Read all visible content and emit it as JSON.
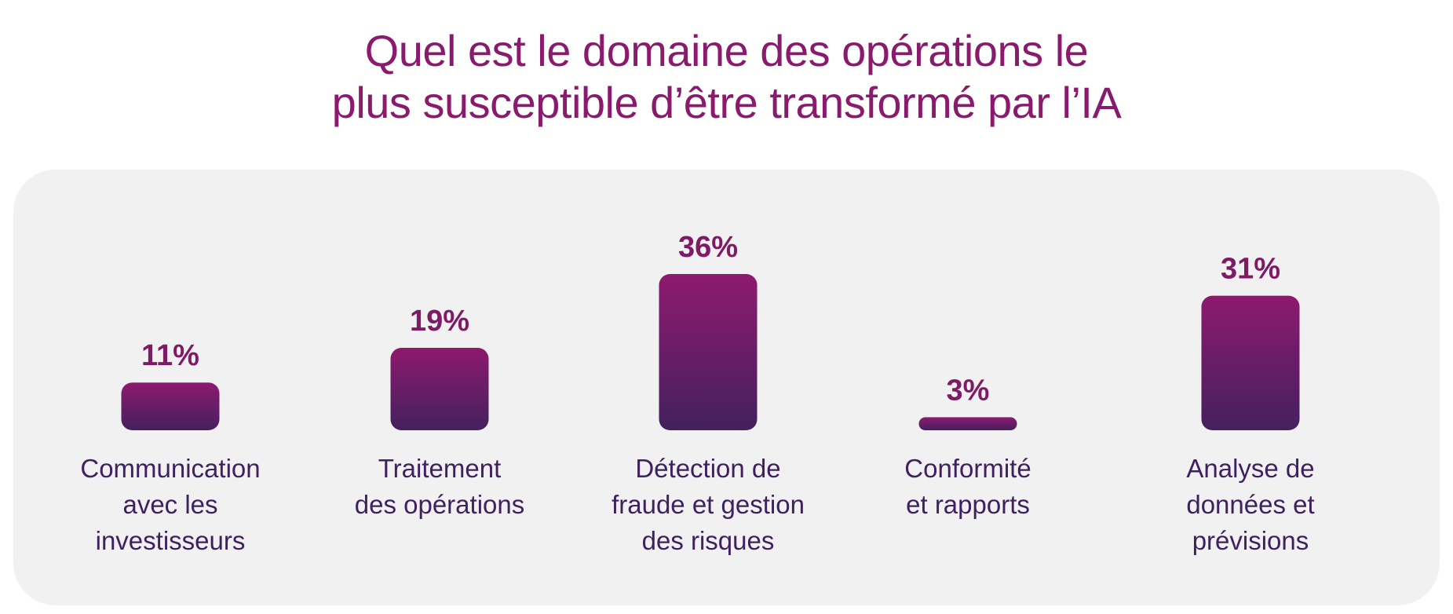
{
  "title": {
    "line1": "Quel est le domaine des opérations le",
    "line2": "plus susceptible d’être transformé par l’IA"
  },
  "colors": {
    "title": "#8a1a6d",
    "bar_top": "#8e1a6f",
    "bar_bottom": "#44205e",
    "value_label": "#7f1a67",
    "category_label": "#3f2160",
    "panel_background": "#f1f1f1"
  },
  "chart_data": {
    "type": "bar",
    "categories": [
      [
        "Communication",
        "avec les",
        "investisseurs"
      ],
      [
        "Traitement",
        "des opérations"
      ],
      [
        "Détection de",
        "fraude et gestion",
        "des risques"
      ],
      [
        "Conformité",
        "et rapports"
      ],
      [
        "Analyse de",
        "données et",
        "prévisions"
      ]
    ],
    "values": [
      11,
      19,
      36,
      3,
      31
    ],
    "value_labels": [
      "11%",
      "19%",
      "36%",
      "3%",
      "31%"
    ],
    "unit": "%",
    "xlabel": "",
    "ylabel": "",
    "ylim": [
      0,
      36
    ],
    "grid": false,
    "legend": "none"
  }
}
